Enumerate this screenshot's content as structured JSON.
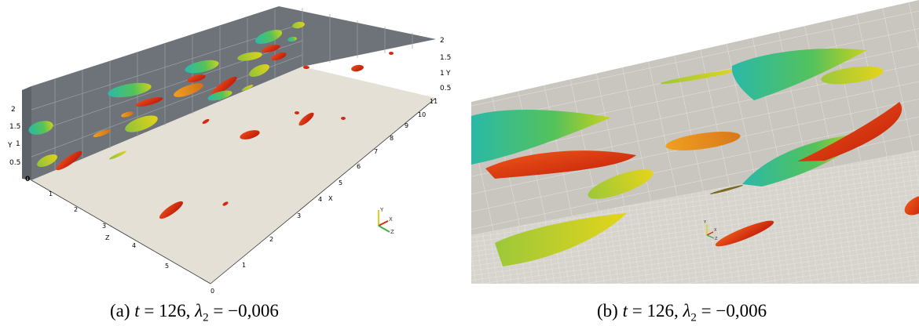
{
  "panel_a": {
    "y_axis_back": {
      "ticks": [
        "2",
        "1.5",
        "1",
        "0.5"
      ],
      "label": "Y"
    },
    "y_axis_left": {
      "ticks": [
        "2",
        "1.5",
        "1",
        "0.5",
        "0"
      ],
      "label": "Y"
    },
    "x_axis": {
      "ticks": [
        "0",
        "1",
        "2",
        "3",
        "4",
        "5",
        "6",
        "7",
        "8",
        "9",
        "10",
        "11"
      ],
      "label": "X"
    },
    "z_axis": {
      "ticks": [
        "1",
        "2",
        "3",
        "4",
        "5"
      ],
      "label": "Z"
    },
    "orientation": {
      "y": "Y",
      "x": "X",
      "z": "Z"
    }
  },
  "panel_b": {
    "orientation": {
      "y": "Y",
      "x": "X",
      "z": "Z"
    }
  },
  "captions": {
    "a": {
      "label": "(a)",
      "t_sym": "t",
      "t_eq": " = 126, ",
      "lambda_sym": "λ",
      "lambda_sub": "2",
      "lambda_eq": " = −0,006"
    },
    "b": {
      "label": "(b)",
      "t_sym": "t",
      "t_eq": " = 126, ",
      "lambda_sym": "λ",
      "lambda_sub": "2",
      "lambda_eq": " = −0,006"
    }
  },
  "colors": {
    "back_wall": "#6d7379",
    "floor": "#e4e0d6",
    "vortex_red": "#d8280f",
    "vortex_orange": "#e58a10",
    "vortex_yellow": "#d2c81c",
    "vortex_green": "#55c25a",
    "vortex_cyan": "#2ab9a8"
  }
}
